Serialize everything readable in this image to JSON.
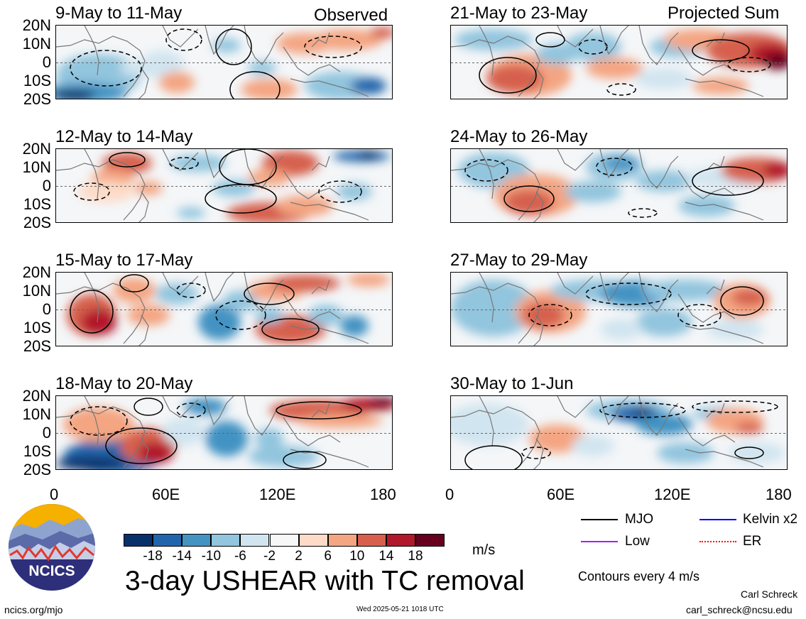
{
  "panels_left": [
    {
      "title": "9-May to 11-May",
      "tag": "Observed"
    },
    {
      "title": "12-May to 14-May",
      "tag": ""
    },
    {
      "title": "15-May to 17-May",
      "tag": ""
    },
    {
      "title": "18-May to 20-May",
      "tag": ""
    }
  ],
  "panels_right": [
    {
      "title": "21-May to 23-May",
      "tag": "Projected Sum"
    },
    {
      "title": "24-May to 26-May",
      "tag": ""
    },
    {
      "title": "27-May to 29-May",
      "tag": ""
    },
    {
      "title": "30-May to 1-Jun",
      "tag": ""
    }
  ],
  "lat_labels": [
    "20N",
    "10N",
    "0",
    "10S",
    "20S"
  ],
  "lon_labels": [
    "0",
    "60E",
    "120E",
    "180"
  ],
  "colorbar": {
    "ticks": [
      "-18",
      "-14",
      "-10",
      "-6",
      "-2",
      "2",
      "6",
      "10",
      "14",
      "18"
    ],
    "colors": [
      "#08306b",
      "#2166ac",
      "#4393c3",
      "#92c5de",
      "#d1e5f0",
      "#f7f7f7",
      "#fddbc7",
      "#f4a582",
      "#d6604d",
      "#b2182b",
      "#67001f"
    ],
    "units": "m/s"
  },
  "legend": {
    "items": [
      {
        "label": "MJO",
        "color": "#000000"
      },
      {
        "label": "Kelvin x2",
        "color": "#0000ff"
      },
      {
        "label": "Low",
        "color": "#a020f0"
      },
      {
        "label": "ER",
        "color": "#ff0000"
      }
    ],
    "contours": "Contours every 4 m/s"
  },
  "chart_data": {
    "type": "heatmap",
    "title": "3-day USHEAR with TC removal",
    "xlabel": "",
    "ylabel": "",
    "x_range": [
      "0",
      "180"
    ],
    "y_range": [
      "20S",
      "20N"
    ],
    "units": "m/s",
    "levels": [
      -18,
      -14,
      -10,
      -6,
      -2,
      2,
      6,
      10,
      14,
      18
    ],
    "panels": [
      "9-May to 11-May",
      "12-May to 14-May",
      "15-May to 17-May",
      "18-May to 20-May",
      "21-May to 23-May",
      "24-May to 26-May",
      "27-May to 29-May",
      "30-May to 1-Jun"
    ]
  },
  "logo": {
    "text": "NCICS"
  },
  "footer": {
    "left": "ncics.org/mjo",
    "center": "Wed 2025-05-21 1018 UTC",
    "author": "Carl Schreck",
    "email": "carl_schreck@ncsu.edu"
  }
}
